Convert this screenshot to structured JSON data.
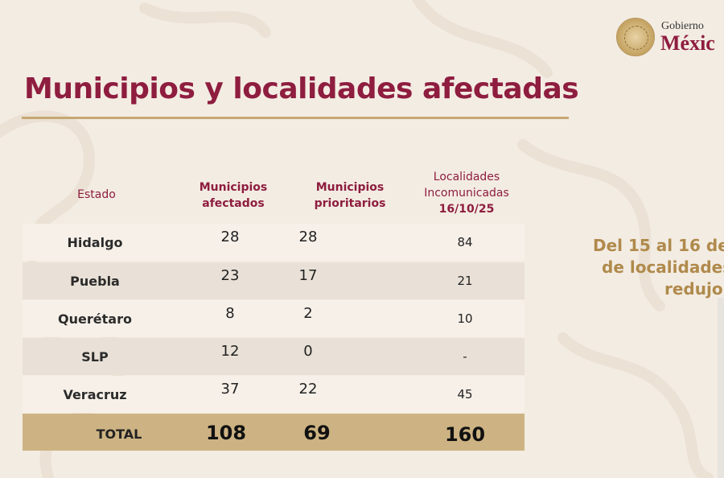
{
  "header": {
    "gobierno": "Gobierno",
    "mexico": "Méxic"
  },
  "title": "Municipios y localidades afectadas",
  "table": {
    "columns": {
      "estado": "Estado",
      "municipios_afectados": [
        "Municipios",
        "afectados"
      ],
      "municipios_prioritarios": [
        "Municipios",
        "prioritarios"
      ],
      "localidades": [
        "Localidades",
        "Incomunicadas",
        "16/10/25"
      ]
    },
    "rows": [
      {
        "estado": "Hidalgo",
        "afectados": "28",
        "prioritarios": "28",
        "localidades": "84"
      },
      {
        "estado": "Puebla",
        "afectados": "23",
        "prioritarios": "17",
        "localidades": "21"
      },
      {
        "estado": "Querétaro",
        "afectados": "8",
        "prioritarios": "2",
        "localidades": "10"
      },
      {
        "estado": "SLP",
        "afectados": "12",
        "prioritarios": "0",
        "localidades": "-"
      },
      {
        "estado": "Veracruz",
        "afectados": "37",
        "prioritarios": "22",
        "localidades": "45"
      }
    ],
    "total": {
      "label": "TOTAL",
      "afectados": "108",
      "prioritarios": "69",
      "localidades": "160"
    }
  },
  "side_text": {
    "line1": "Del 15 al 16 de",
    "line2": "de localidades",
    "line3": "redujo"
  },
  "colors": {
    "brand": "#8e1d3f",
    "gold": "#c6a873",
    "total_band": "#cdb383",
    "background": "#f3ece3"
  }
}
